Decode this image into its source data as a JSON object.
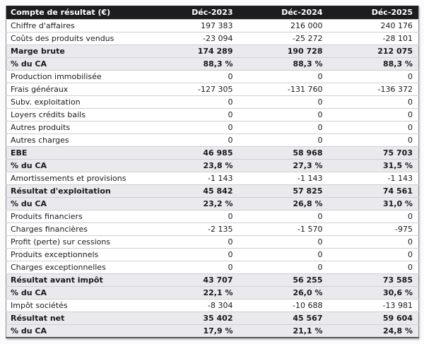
{
  "table": {
    "columns": [
      "Compte de résultat (€)",
      "Déc-2023",
      "Déc-2024",
      "Déc-2025"
    ],
    "column_keys": [
      "dec-2023",
      "dec-2024",
      "dec-2025"
    ],
    "rows": [
      {
        "label": "Chiffre d'affaires",
        "values": [
          "197 383",
          "216 000",
          "240 176"
        ],
        "style": "normal"
      },
      {
        "label": "Coûts des produits vendus",
        "values": [
          "-23 094",
          "-25 272",
          "-28 101"
        ],
        "style": "normal"
      },
      {
        "label": "Marge brute",
        "values": [
          "174 289",
          "190 728",
          "212 075"
        ],
        "style": "summary"
      },
      {
        "label": "% du CA",
        "values": [
          "88,3 %",
          "88,3 %",
          "88,3 %"
        ],
        "style": "summary"
      },
      {
        "label": "Production immobilisée",
        "values": [
          "0",
          "0",
          "0"
        ],
        "style": "normal"
      },
      {
        "label": "Frais généraux",
        "values": [
          "-127 305",
          "-131 760",
          "-136 372"
        ],
        "style": "normal"
      },
      {
        "label": "Subv. exploitation",
        "values": [
          "0",
          "0",
          "0"
        ],
        "style": "normal"
      },
      {
        "label": "Loyers crédits bails",
        "values": [
          "0",
          "0",
          "0"
        ],
        "style": "normal"
      },
      {
        "label": "Autres produits",
        "values": [
          "0",
          "0",
          "0"
        ],
        "style": "normal"
      },
      {
        "label": "Autres charges",
        "values": [
          "0",
          "0",
          "0"
        ],
        "style": "normal"
      },
      {
        "label": "EBE",
        "values": [
          "46 985",
          "58 968",
          "75 703"
        ],
        "style": "summary"
      },
      {
        "label": "% du CA",
        "values": [
          "23,8 %",
          "27,3 %",
          "31,5 %"
        ],
        "style": "summary"
      },
      {
        "label": "Amortissements et provisions",
        "values": [
          "-1 143",
          "-1 143",
          "-1 143"
        ],
        "style": "normal"
      },
      {
        "label": "Résultat d'exploitation",
        "values": [
          "45 842",
          "57 825",
          "74 561"
        ],
        "style": "summary"
      },
      {
        "label": "% du CA",
        "values": [
          "23,2 %",
          "26,8 %",
          "31,0 %"
        ],
        "style": "summary"
      },
      {
        "label": "Produits financiers",
        "values": [
          "0",
          "0",
          "0"
        ],
        "style": "normal"
      },
      {
        "label": "Charges financières",
        "values": [
          "-2 135",
          "-1 570",
          "-975"
        ],
        "style": "normal"
      },
      {
        "label": "Profit (perte) sur cessions",
        "values": [
          "0",
          "0",
          "0"
        ],
        "style": "normal"
      },
      {
        "label": "Produits exceptionnels",
        "values": [
          "0",
          "0",
          "0"
        ],
        "style": "normal"
      },
      {
        "label": "Charges exceptionnelles",
        "values": [
          "0",
          "0",
          "0"
        ],
        "style": "normal"
      },
      {
        "label": "Résultat avant impôt",
        "values": [
          "43 707",
          "56 255",
          "73 585"
        ],
        "style": "summary"
      },
      {
        "label": "% du CA",
        "values": [
          "22,1 %",
          "26,0 %",
          "30,6 %"
        ],
        "style": "summary"
      },
      {
        "label": "Impôt sociétés",
        "values": [
          "-8 304",
          "-10 688",
          "-13 981"
        ],
        "style": "normal"
      },
      {
        "label": "Résultat net",
        "values": [
          "35 402",
          "45 567",
          "59 604"
        ],
        "style": "summary"
      },
      {
        "label": "% du CA",
        "values": [
          "17,9 %",
          "21,1 %",
          "24,8 %"
        ],
        "style": "summary"
      }
    ]
  },
  "colors": {
    "header_bg": "#1d1d20",
    "header_text": "#ffffff",
    "summary_bg": "#e9e9ee",
    "row_bg": "#ffffff",
    "grid_line": "#cfcfd4",
    "outer_border": "#8f8f96",
    "bottom_border": "#57575e",
    "text": "#1a1a1a",
    "page_bg": "#fbfbfc"
  },
  "chart_data": {
    "type": "table",
    "title": "Compte de résultat (€)",
    "columns": [
      "Compte de résultat (€)",
      "Déc-2023",
      "Déc-2024",
      "Déc-2025"
    ],
    "rows": [
      [
        "Chiffre d'affaires",
        197383,
        216000,
        240176
      ],
      [
        "Coûts des produits vendus",
        -23094,
        -25272,
        -28101
      ],
      [
        "Marge brute",
        174289,
        190728,
        212075
      ],
      [
        "% du CA",
        88.3,
        88.3,
        88.3
      ],
      [
        "Production immobilisée",
        0,
        0,
        0
      ],
      [
        "Frais généraux",
        -127305,
        -131760,
        -136372
      ],
      [
        "Subv. exploitation",
        0,
        0,
        0
      ],
      [
        "Loyers crédits bails",
        0,
        0,
        0
      ],
      [
        "Autres produits",
        0,
        0,
        0
      ],
      [
        "Autres charges",
        0,
        0,
        0
      ],
      [
        "EBE",
        46985,
        58968,
        75703
      ],
      [
        "% du CA",
        23.8,
        27.3,
        31.5
      ],
      [
        "Amortissements et provisions",
        -1143,
        -1143,
        -1143
      ],
      [
        "Résultat d'exploitation",
        45842,
        57825,
        74561
      ],
      [
        "% du CA",
        23.2,
        26.8,
        31.0
      ],
      [
        "Produits financiers",
        0,
        0,
        0
      ],
      [
        "Charges financières",
        -2135,
        -1570,
        -975
      ],
      [
        "Profit (perte) sur cessions",
        0,
        0,
        0
      ],
      [
        "Produits exceptionnels",
        0,
        0,
        0
      ],
      [
        "Charges exceptionnelles",
        0,
        0,
        0
      ],
      [
        "Résultat avant impôt",
        43707,
        56255,
        73585
      ],
      [
        "% du CA",
        22.1,
        26.0,
        30.6
      ],
      [
        "Impôt sociétés",
        -8304,
        -10688,
        -13981
      ],
      [
        "Résultat net",
        35402,
        45567,
        59604
      ],
      [
        "% du CA",
        17.9,
        21.1,
        24.8
      ]
    ]
  }
}
